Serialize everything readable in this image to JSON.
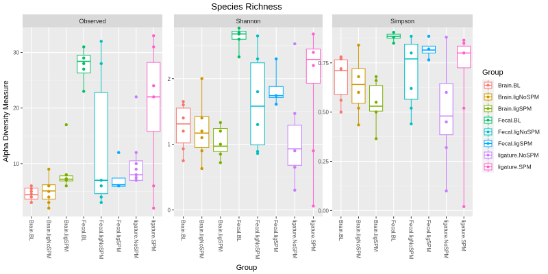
{
  "chart_data": {
    "type": "box",
    "title": "Species Richness",
    "xlabel": "Group",
    "ylabel": "Alpha Diversity Measure",
    "legend_title": "Group",
    "legend_position": "right",
    "grid": true,
    "categories": [
      "Brain.BL",
      "Brain.ligNoSPM",
      "Brain.ligSPM",
      "Fecal.BL",
      "Fecal.ligNoSPM",
      "Fecal.ligSPM",
      "ligature.NoSPM",
      "ligature.SPM"
    ],
    "colors": [
      "#F8766D",
      "#CD9600",
      "#7CAE00",
      "#00BE67",
      "#00BFC4",
      "#00A9FF",
      "#C77CFF",
      "#FF61CC"
    ],
    "panels": [
      {
        "name": "Observed",
        "ylim": [
          0.5,
          34.5
        ],
        "yticks": [
          10,
          20,
          30
        ],
        "boxes": [
          {
            "q1": 3.6,
            "median": 4.4,
            "q3": 5.6,
            "lo": 3.0,
            "hi": 6.0
          },
          {
            "q1": 3.6,
            "median": 5.1,
            "q3": 6.2,
            "lo": 2.0,
            "hi": 9.0
          },
          {
            "q1": 6.9,
            "median": 7.2,
            "q3": 7.8,
            "lo": 6.0,
            "hi": 8.0
          },
          {
            "q1": 26.3,
            "median": 28.4,
            "q3": 29.5,
            "lo": 23.0,
            "hi": 31.0
          },
          {
            "q1": 4.6,
            "median": 7.0,
            "q3": 22.8,
            "lo": 3.0,
            "hi": 32.0
          },
          {
            "q1": 5.9,
            "median": 6.2,
            "q3": 7.4,
            "lo": 5.8,
            "hi": 7.4
          },
          {
            "q1": 7.0,
            "median": 8.0,
            "q3": 10.5,
            "lo": 7.0,
            "hi": 12.0
          },
          {
            "q1": 15.8,
            "median": 22.0,
            "q3": 28.2,
            "lo": 2.0,
            "hi": 33.0
          }
        ],
        "points": [
          [
            3,
            4,
            4.5,
            5,
            5.5,
            6
          ],
          [
            2,
            3,
            4,
            5,
            6,
            9
          ],
          [
            6,
            7,
            7.3,
            8,
            17
          ],
          [
            23,
            27,
            28,
            29,
            31
          ],
          [
            3,
            4,
            6,
            7,
            28,
            32
          ],
          [
            6,
            12
          ],
          [
            7,
            7.5,
            8,
            9,
            10,
            12,
            22
          ],
          [
            2,
            6,
            22,
            24,
            31,
            33
          ]
        ]
      },
      {
        "name": "Shannon",
        "ylim": [
          -0.1,
          2.78
        ],
        "yticks": [
          0,
          1,
          2
        ],
        "boxes": [
          {
            "q1": 1.02,
            "median": 1.31,
            "q3": 1.55,
            "lo": 0.75,
            "hi": 1.65
          },
          {
            "q1": 0.95,
            "median": 1.17,
            "q3": 1.42,
            "lo": 0.63,
            "hi": 2.0
          },
          {
            "q1": 0.89,
            "median": 0.97,
            "q3": 1.24,
            "lo": 0.72,
            "hi": 1.33
          },
          {
            "q1": 2.6,
            "median": 2.68,
            "q3": 2.72,
            "lo": 2.33,
            "hi": 2.77
          },
          {
            "q1": 0.99,
            "median": 1.58,
            "q3": 2.24,
            "lo": 0.86,
            "hi": 2.65
          },
          {
            "q1": 1.71,
            "median": 1.74,
            "q3": 1.88,
            "lo": 1.61,
            "hi": 2.3
          },
          {
            "q1": 0.68,
            "median": 0.93,
            "q3": 1.29,
            "lo": 0.3,
            "hi": 1.47
          },
          {
            "q1": 1.93,
            "median": 2.29,
            "q3": 2.45,
            "lo": 0.06,
            "hi": 2.68
          }
        ],
        "points": [
          [
            0.75,
            0.93,
            1.2,
            1.4,
            1.6,
            1.65
          ],
          [
            0.63,
            0.9,
            1.1,
            1.2,
            1.4,
            2.0
          ],
          [
            0.72,
            0.85,
            1.0,
            1.2,
            1.33
          ],
          [
            2.33,
            2.6,
            2.68,
            2.7,
            2.77
          ],
          [
            0.86,
            0.89,
            1.3,
            1.8,
            2.3,
            2.65
          ],
          [
            1.61,
            1.74,
            2.3
          ],
          [
            0.3,
            0.65,
            0.9,
            1.47,
            2.53
          ],
          [
            0.06,
            0.9,
            2.2,
            2.4,
            2.68
          ]
        ]
      },
      {
        "name": "Simpson",
        "ylim": [
          -0.03,
          0.93
        ],
        "yticks": [
          0.0,
          0.25,
          0.5,
          0.75
        ],
        "boxes": [
          {
            "q1": 0.59,
            "median": 0.71,
            "q3": 0.765,
            "lo": 0.5,
            "hi": 0.78
          },
          {
            "q1": 0.545,
            "median": 0.64,
            "q3": 0.72,
            "lo": 0.435,
            "hi": 0.84
          },
          {
            "q1": 0.505,
            "median": 0.53,
            "q3": 0.635,
            "lo": 0.365,
            "hi": 0.68
          },
          {
            "q1": 0.875,
            "median": 0.885,
            "q3": 0.895,
            "lo": 0.85,
            "hi": 0.905
          },
          {
            "q1": 0.565,
            "median": 0.77,
            "q3": 0.845,
            "lo": 0.44,
            "hi": 0.885
          },
          {
            "q1": 0.8,
            "median": 0.815,
            "q3": 0.835,
            "lo": 0.765,
            "hi": 0.835
          },
          {
            "q1": 0.385,
            "median": 0.48,
            "q3": 0.645,
            "lo": 0.1,
            "hi": 0.88
          },
          {
            "q1": 0.725,
            "median": 0.8,
            "q3": 0.835,
            "lo": 0.02,
            "hi": 0.865
          }
        ],
        "points": [
          [
            0.5,
            0.56,
            0.72,
            0.77,
            0.78
          ],
          [
            0.435,
            0.52,
            0.6,
            0.68,
            0.84
          ],
          [
            0.365,
            0.5,
            0.55,
            0.66,
            0.68
          ],
          [
            0.85,
            0.88,
            0.905
          ],
          [
            0.44,
            0.52,
            0.62,
            0.8,
            0.885
          ],
          [
            0.765,
            0.82,
            0.885
          ],
          [
            0.1,
            0.32,
            0.45,
            0.6,
            0.88
          ],
          [
            0.02,
            0.52,
            0.8,
            0.85,
            0.865
          ]
        ]
      }
    ]
  }
}
